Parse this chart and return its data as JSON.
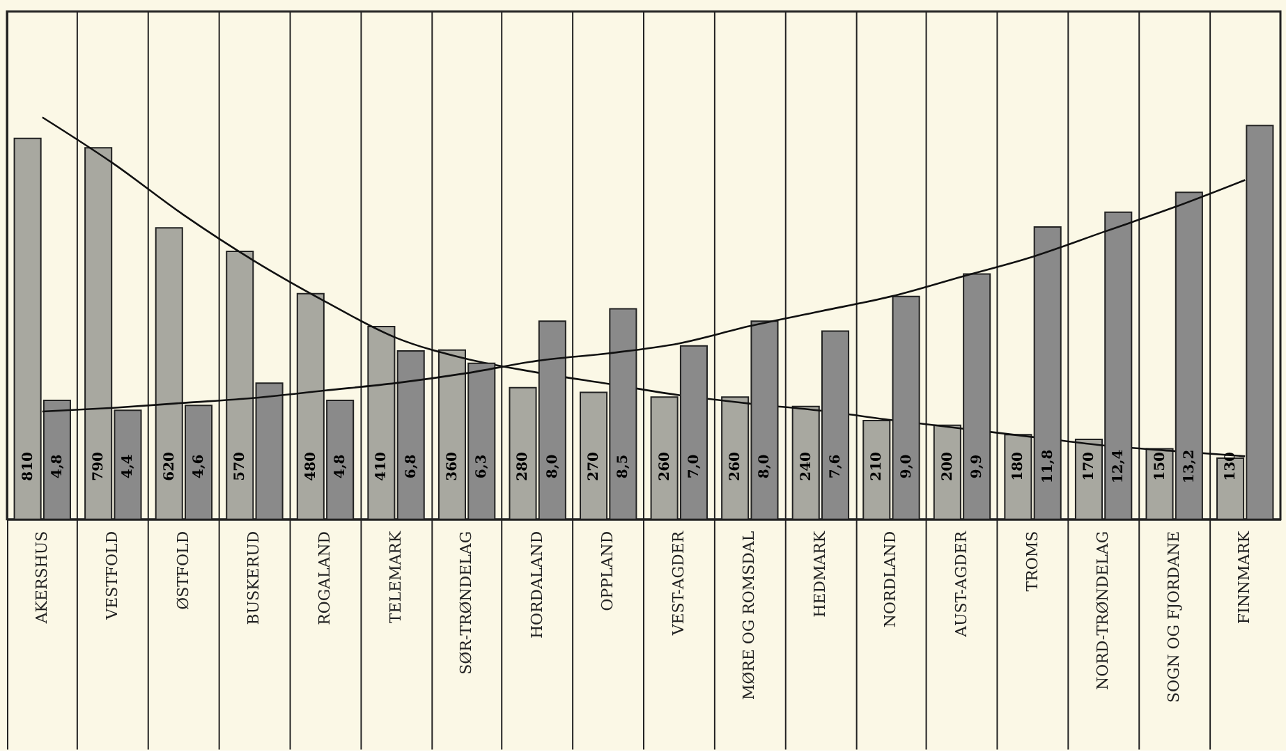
{
  "chart_data": {
    "type": "bar",
    "categories": [
      "AKERSHUS",
      "VESTFOLD",
      "ØSTFOLD",
      "BUSKERUD",
      "ROGALAND",
      "TELEMARK",
      "SØR-TRØNDELAG",
      "HORDALAND",
      "OPPLAND",
      "VEST-AGDER",
      "MØRE OG ROMSDAL",
      "HEDMARK",
      "NORDLAND",
      "AUST-AGDER",
      "TROMS",
      "NORD-TRØNDELAG",
      "SOGN OG FJORDANE",
      "FINNMARK"
    ],
    "series": [
      {
        "color": "#a8a8a0",
        "values": [
          810,
          790,
          620,
          570,
          480,
          410,
          360,
          280,
          270,
          260,
          260,
          240,
          210,
          200,
          180,
          170,
          150,
          130
        ],
        "value_labels": [
          "810",
          "790",
          "620",
          "570",
          "480",
          "410",
          "360",
          "280",
          "270",
          "260",
          "260",
          "240",
          "210",
          "200",
          "180",
          "170",
          "150",
          "130"
        ]
      },
      {
        "color": "#8a8a8a",
        "axis": "y2",
        "values": [
          4.8,
          4.4,
          4.6,
          5.5,
          4.8,
          6.8,
          6.3,
          8.0,
          8.5,
          7.0,
          8.0,
          7.6,
          9.0,
          9.9,
          11.8,
          12.4,
          13.2,
          15.9
        ],
        "value_labels": [
          "4,8",
          "4,4",
          "4,6",
          null,
          "4,8",
          "6,8",
          "6,3",
          "8,0",
          "8,5",
          "7,0",
          "8,0",
          "7,6",
          "9,0",
          "9,9",
          "11,8",
          "12,4",
          "13,2",
          null
        ]
      },
      {
        "type": "line",
        "color": "#111111",
        "values": [
          855,
          757,
          647,
          549,
          463,
          386,
          341,
          312,
          288,
          264,
          246,
          231,
          211,
          193,
          175,
          157,
          145,
          134
        ]
      },
      {
        "type": "line",
        "axis": "y2",
        "color": "#111111",
        "values": [
          4.35,
          4.5,
          4.7,
          4.9,
          5.2,
          5.5,
          5.9,
          6.4,
          6.7,
          7.1,
          7.8,
          8.4,
          9.0,
          9.8,
          10.6,
          11.6,
          12.6,
          13.7
        ]
      }
    ],
    "ylim": [
      0,
      1080
    ],
    "y2lim": [
      0,
      20.5
    ],
    "tick_labels": "x",
    "grid": "x",
    "legend": false
  }
}
